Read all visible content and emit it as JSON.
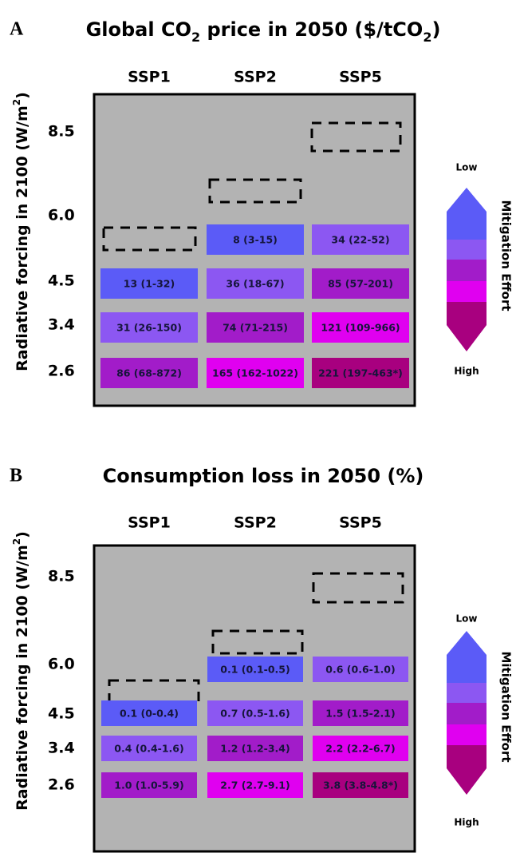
{
  "panels": [
    {
      "letter": "A",
      "title": [
        {
          "text": "Global CO"
        },
        {
          "text": "2",
          "shift": "sub"
        },
        {
          "text": " price in 2050 ($/tCO"
        },
        {
          "text": "2",
          "shift": "sub"
        },
        {
          "text": ")"
        }
      ],
      "columns": [
        "SSP1",
        "SSP2",
        "SSP5"
      ],
      "y_label": [
        {
          "text": "Radiative forcing in 2100 (W/m"
        },
        {
          "text": "2",
          "shift": "super"
        },
        {
          "text": ")"
        }
      ],
      "row_labels": [
        "8.5",
        "6.0",
        "4.5",
        "3.4",
        "2.6"
      ],
      "cells": [
        [
          null,
          {
            "text": "8 (3-15)",
            "color": "#5b5bf7"
          },
          {
            "text": "34 (22-52)",
            "color": "#8c57f2"
          }
        ],
        [
          {
            "text": "13 (1-32)",
            "color": "#5b5bf7"
          },
          {
            "text": "36 (18-67)",
            "color": "#8c57f2"
          },
          {
            "text": "85 (57-201)",
            "color": "#a21cc9"
          }
        ],
        [
          {
            "text": "31 (26-150)",
            "color": "#8c57f2"
          },
          {
            "text": "74 (71-215)",
            "color": "#a21cc9"
          },
          {
            "text": "121 (109-966)",
            "color": "#e000f0"
          }
        ],
        [
          {
            "text": "86 (68-872)",
            "color": "#a21cc9"
          },
          {
            "text": "165 (162-1022)",
            "color": "#e000f0"
          },
          {
            "text": "221 (197-463*)",
            "color": "#a8007f"
          }
        ]
      ],
      "legend": {
        "low": "Low",
        "high": "High",
        "label": "Mitigation Effort",
        "colors": [
          "#5b5bf7",
          "#8c57f2",
          "#a21cc9",
          "#e000f0",
          "#a8007f"
        ]
      }
    },
    {
      "letter": "B",
      "title": [
        {
          "text": "Consumption loss in 2050 (%)"
        }
      ],
      "columns": [
        "SSP1",
        "SSP2",
        "SSP5"
      ],
      "y_label": [
        {
          "text": "Radiative forcing in 2100 (W/m"
        },
        {
          "text": "2",
          "shift": "super"
        },
        {
          "text": ")"
        }
      ],
      "row_labels": [
        "8.5",
        "6.0",
        "4.5",
        "3.4",
        "2.6"
      ],
      "cells": [
        [
          null,
          {
            "text": "0.1 (0.1-0.5)",
            "color": "#5b5bf7"
          },
          {
            "text": "0.6 (0.6-1.0)",
            "color": "#8c57f2"
          }
        ],
        [
          {
            "text": "0.1 (0-0.4)",
            "color": "#5b5bf7"
          },
          {
            "text": "0.7 (0.5-1.6)",
            "color": "#8c57f2"
          },
          {
            "text": "1.5 (1.5-2.1)",
            "color": "#a21cc9"
          }
        ],
        [
          {
            "text": "0.4 (0.4-1.6)",
            "color": "#8c57f2"
          },
          {
            "text": "1.2 (1.2-3.4)",
            "color": "#a21cc9"
          },
          {
            "text": "2.2 (2.2-6.7)",
            "color": "#e000f0"
          }
        ],
        [
          {
            "text": "1.0 (1.0-5.9)",
            "color": "#a21cc9"
          },
          {
            "text": "2.7 (2.7-9.1)",
            "color": "#e000f0"
          },
          {
            "text": "3.8 (3.8-4.8*)",
            "color": "#a8007f"
          }
        ]
      ],
      "legend": {
        "low": "Low",
        "high": "High",
        "label": "Mitigation Effort",
        "colors": [
          "#5b5bf7",
          "#8c57f2",
          "#a21cc9",
          "#e000f0",
          "#a8007f"
        ]
      }
    }
  ]
}
